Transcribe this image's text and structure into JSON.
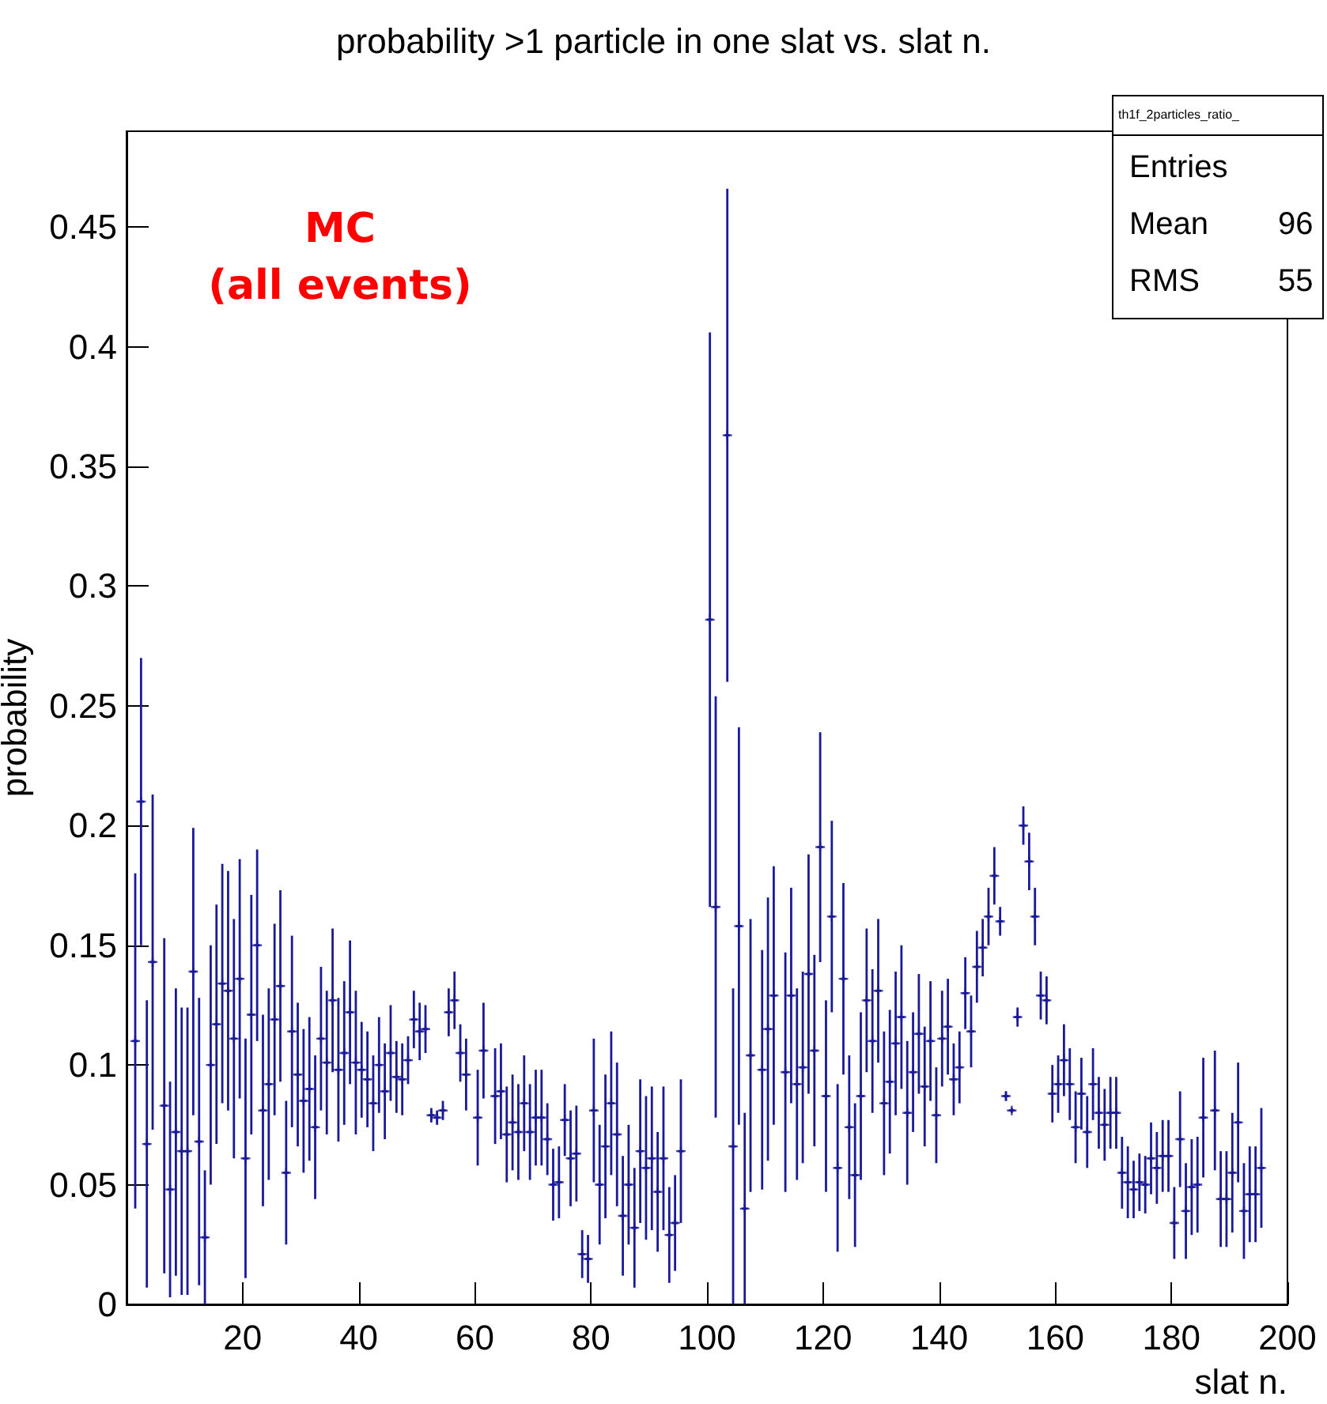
{
  "chart_data": {
    "type": "scatter",
    "title": "probability >1 particle in one slat vs. slat n.",
    "xlabel": "slat n.",
    "ylabel": "probability",
    "annotations": [
      "MC",
      "(all events)",
      "th1f_2particles_ratio_",
      "Entries",
      "Mean",
      "96",
      "RMS",
      "55"
    ],
    "color": "#1a1a99",
    "marker": "cross",
    "x": [
      1.5,
      2.5,
      3.5,
      4.5,
      6.5,
      7.5,
      8.5,
      9.5,
      10.5,
      11.5,
      12.5,
      13.5,
      14.5,
      15.5,
      16.5,
      17.5,
      18.5,
      19.5,
      20.5,
      21.5,
      22.5,
      23.5,
      24.5,
      25.5,
      26.5,
      27.5,
      28.5,
      29.5,
      30.5,
      31.5,
      32.5,
      33.5,
      34.5,
      35.5,
      36.5,
      37.5,
      38.5,
      39.5,
      40.5,
      41.5,
      42.5,
      43.5,
      44.5,
      45.5,
      46.5,
      47.5,
      48.5,
      49.5,
      50.5,
      51.5,
      52.5,
      53.5,
      54.5,
      55.5,
      56.5,
      57.5,
      58.5,
      60.5,
      61.5,
      63.5,
      64.5,
      65.5,
      66.5,
      67.5,
      68.5,
      69.5,
      70.5,
      71.5,
      72.5,
      73.5,
      74.5,
      75.5,
      76.5,
      77.5,
      78.5,
      79.5,
      80.5,
      81.5,
      82.5,
      83.5,
      84.5,
      85.5,
      86.5,
      87.5,
      88.5,
      89.5,
      90.5,
      91.5,
      92.5,
      93.5,
      94.5,
      95.5,
      100.5,
      101.5,
      103.5,
      104.5,
      105.5,
      106.5,
      107.5,
      109.5,
      110.5,
      111.5,
      113.5,
      114.5,
      115.5,
      116.5,
      117.5,
      118.5,
      119.5,
      120.5,
      121.5,
      122.5,
      123.5,
      124.5,
      125.5,
      126.5,
      127.5,
      128.5,
      129.5,
      130.5,
      131.5,
      132.5,
      133.5,
      134.5,
      135.5,
      136.5,
      137.5,
      138.5,
      139.5,
      140.5,
      141.5,
      142.5,
      143.5,
      144.5,
      145.5,
      146.5,
      147.5,
      148.5,
      149.5,
      150.5,
      151.5,
      152.5,
      153.5,
      154.5,
      155.5,
      156.5,
      157.5,
      158.5,
      159.5,
      160.5,
      161.5,
      162.5,
      163.5,
      164.5,
      165.5,
      166.5,
      167.5,
      168.5,
      169.5,
      170.5,
      171.5,
      172.5,
      173.5,
      174.5,
      175.5,
      176.5,
      177.5,
      178.5,
      179.5,
      180.5,
      181.5,
      182.5,
      183.5,
      184.5,
      185.5,
      187.5,
      188.5,
      189.5,
      190.5,
      191.5,
      192.5,
      193.5,
      194.5,
      195.5
    ],
    "values": [
      0.11,
      0.21,
      0.067,
      0.143,
      0.083,
      0.048,
      0.072,
      0.064,
      0.064,
      0.139,
      0.068,
      0.028,
      0.1,
      0.117,
      0.134,
      0.131,
      0.111,
      0.136,
      0.061,
      0.121,
      0.15,
      0.081,
      0.092,
      0.119,
      0.133,
      0.055,
      0.114,
      0.096,
      0.085,
      0.09,
      0.074,
      0.111,
      0.101,
      0.127,
      0.098,
      0.105,
      0.122,
      0.101,
      0.098,
      0.094,
      0.084,
      0.1,
      0.089,
      0.105,
      0.095,
      0.094,
      0.102,
      0.119,
      0.114,
      0.115,
      0.079,
      0.078,
      0.081,
      0.122,
      0.127,
      0.105,
      0.096,
      0.078,
      0.106,
      0.087,
      0.089,
      0.071,
      0.076,
      0.072,
      0.084,
      0.072,
      0.078,
      0.078,
      0.069,
      0.05,
      0.051,
      0.077,
      0.061,
      0.063,
      0.021,
      0.019,
      0.081,
      0.05,
      0.066,
      0.084,
      0.071,
      0.037,
      0.05,
      0.032,
      0.064,
      0.057,
      0.061,
      0.047,
      0.061,
      0.029,
      0.034,
      0.064,
      0.286,
      0.166,
      0.363,
      0.066,
      0.158,
      0.04,
      0.104,
      0.098,
      0.115,
      0.129,
      0.097,
      0.129,
      0.092,
      0.099,
      0.138,
      0.106,
      0.191,
      0.087,
      0.162,
      0.057,
      0.136,
      0.074,
      0.054,
      0.087,
      0.127,
      0.11,
      0.131,
      0.084,
      0.093,
      0.109,
      0.12,
      0.08,
      0.097,
      0.113,
      0.091,
      0.11,
      0.079,
      0.111,
      0.116,
      0.094,
      0.099,
      0.13,
      0.114,
      0.141,
      0.149,
      0.162,
      0.179,
      0.16,
      0.087,
      0.081,
      0.12,
      0.2,
      0.185,
      0.162,
      0.129,
      0.127,
      0.088,
      0.092,
      0.102,
      0.092,
      0.074,
      0.088,
      0.072,
      0.092,
      0.08,
      0.075,
      0.08,
      0.08,
      0.055,
      0.051,
      0.048,
      0.051,
      0.05,
      0.061,
      0.057,
      0.062,
      0.062,
      0.034,
      0.069,
      0.039,
      0.049,
      0.05,
      0.078,
      0.081,
      0.044,
      0.044,
      0.055,
      0.076,
      0.039,
      0.046,
      0.046,
      0.057
    ],
    "errors": [
      0.07,
      0.06,
      0.06,
      0.07,
      0.07,
      0.045,
      0.06,
      0.06,
      0.06,
      0.06,
      0.06,
      0.028,
      0.05,
      0.05,
      0.05,
      0.05,
      0.05,
      0.05,
      0.05,
      0.05,
      0.04,
      0.04,
      0.04,
      0.04,
      0.04,
      0.03,
      0.04,
      0.03,
      0.03,
      0.03,
      0.03,
      0.03,
      0.03,
      0.03,
      0.03,
      0.03,
      0.03,
      0.03,
      0.02,
      0.02,
      0.02,
      0.02,
      0.02,
      0.02,
      0.015,
      0.015,
      0.01,
      0.012,
      0.012,
      0.01,
      0.003,
      0.003,
      0.004,
      0.01,
      0.012,
      0.012,
      0.015,
      0.02,
      0.02,
      0.02,
      0.02,
      0.02,
      0.02,
      0.02,
      0.02,
      0.02,
      0.02,
      0.02,
      0.015,
      0.015,
      0.015,
      0.015,
      0.02,
      0.02,
      0.01,
      0.01,
      0.03,
      0.025,
      0.03,
      0.03,
      0.03,
      0.025,
      0.025,
      0.025,
      0.03,
      0.03,
      0.03,
      0.025,
      0.03,
      0.02,
      0.02,
      0.03,
      0.12,
      0.088,
      0.103,
      0.066,
      0.083,
      0.04,
      0.057,
      0.05,
      0.055,
      0.054,
      0.05,
      0.045,
      0.04,
      0.04,
      0.05,
      0.04,
      0.048,
      0.04,
      0.04,
      0.035,
      0.04,
      0.03,
      0.03,
      0.035,
      0.03,
      0.03,
      0.03,
      0.03,
      0.03,
      0.03,
      0.03,
      0.03,
      0.025,
      0.025,
      0.025,
      0.025,
      0.02,
      0.02,
      0.02,
      0.015,
      0.015,
      0.015,
      0.015,
      0.015,
      0.012,
      0.012,
      0.012,
      0.006,
      0.002,
      0.001,
      0.004,
      0.008,
      0.012,
      0.012,
      0.01,
      0.01,
      0.012,
      0.012,
      0.015,
      0.015,
      0.015,
      0.015,
      0.015,
      0.015,
      0.015,
      0.015,
      0.015,
      0.015,
      0.015,
      0.015,
      0.012,
      0.012,
      0.012,
      0.015,
      0.015,
      0.015,
      0.015,
      0.015,
      0.02,
      0.02,
      0.02,
      0.02,
      0.025,
      0.025,
      0.02,
      0.02,
      0.025,
      0.025,
      0.02,
      0.02,
      0.02,
      0.025
    ],
    "xerrors": [
      0.5,
      0.5,
      0.5,
      0.5,
      0.5,
      0.5,
      0.5,
      0.5,
      0.5,
      0.5,
      0.5,
      0.5,
      0.5,
      0.5,
      0.5,
      0.5,
      0.5,
      0.5,
      0.5,
      0.5,
      0.5,
      0.5,
      0.5,
      0.5,
      0.5,
      0.5,
      0.5,
      0.5,
      0.5,
      0.5,
      0.5,
      0.5,
      0.5,
      0.5,
      0.5,
      0.5,
      0.5,
      0.5,
      0.5,
      0.5,
      0.5,
      0.5,
      0.5,
      0.5,
      0.5,
      0.5,
      0.5,
      0.5,
      0.5,
      0.5,
      0.5,
      0.5,
      0.5,
      0.5,
      0.5,
      0.5,
      0.5,
      0.5,
      0.5,
      0.5,
      0.5,
      0.5,
      0.5,
      0.5,
      0.5,
      0.5,
      0.5,
      0.5,
      0.5,
      0.5,
      0.5,
      0.5,
      0.5,
      0.5,
      0.5,
      0.5,
      0.5,
      0.5,
      0.5,
      0.5,
      0.5,
      0.5,
      0.5,
      0.5,
      0.5,
      0.5,
      0.5,
      0.5,
      0.5,
      0.5,
      0.5,
      0.5,
      0.5,
      0.5,
      0.5,
      0.5,
      0.5,
      0.5,
      0.5,
      0.5,
      0.5,
      0.5,
      0.5,
      0.5,
      0.5,
      0.5,
      0.5,
      0.5,
      0.5,
      0.5,
      0.5,
      0.5,
      0.5,
      0.5,
      0.5,
      0.5,
      0.5,
      0.5,
      0.5,
      0.5,
      0.5,
      0.5,
      0.5,
      0.5,
      0.5,
      0.5,
      0.5,
      0.5,
      0.5,
      0.5,
      0.5,
      0.5,
      0.5,
      0.5,
      0.5,
      0.5,
      0.5,
      0.5,
      0.5,
      0.5,
      0.5,
      0.5,
      0.5,
      0.5,
      0.5,
      0.5,
      0.5,
      0.5,
      0.5,
      0.5,
      0.5,
      0.5,
      0.5,
      0.5,
      0.5,
      0.5,
      0.5,
      0.5,
      0.5,
      0.5,
      0.5,
      0.5,
      0.5,
      0.5,
      0.5,
      0.5,
      0.5,
      0.5,
      0.5,
      0.5,
      0.5,
      0.5,
      0.5,
      0.5,
      0.5,
      0.5,
      0.5,
      0.5,
      0.5,
      0.5,
      0.5,
      0.5,
      0.5,
      0.5
    ],
    "xlim": [
      0,
      200
    ],
    "xticks": [
      20,
      40,
      60,
      80,
      100,
      120,
      140,
      160,
      180,
      200
    ],
    "ylim": [
      0,
      0.49
    ],
    "yticks": [
      0,
      0.05,
      0.1,
      0.15,
      0.2,
      0.25,
      0.3,
      0.35,
      0.4,
      0.45
    ]
  }
}
